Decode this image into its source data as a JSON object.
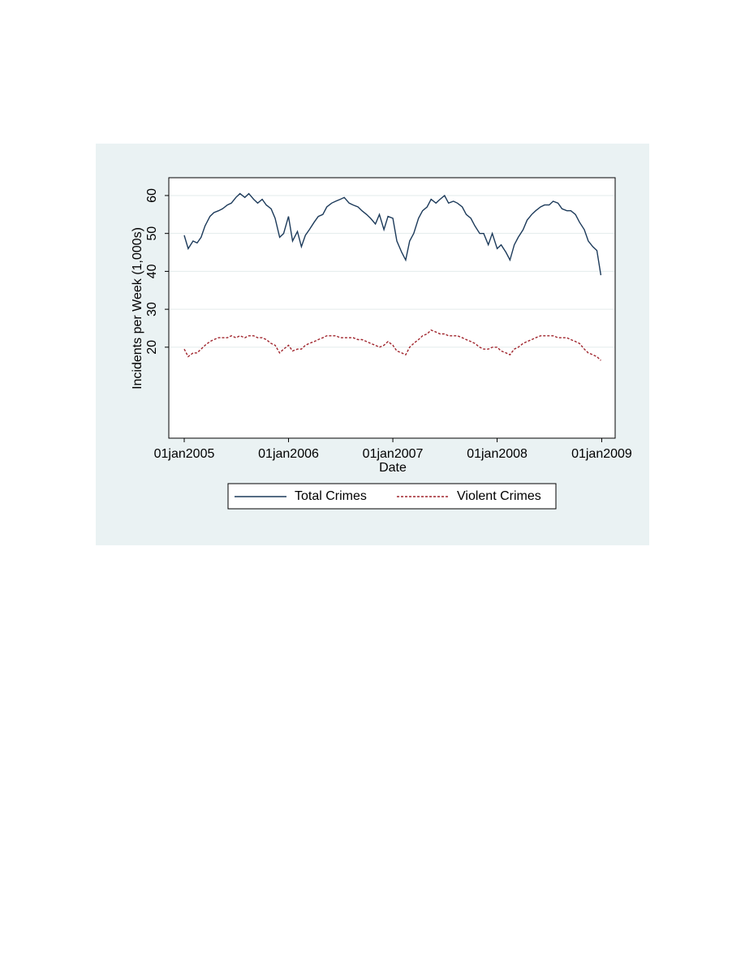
{
  "chart_data": {
    "type": "line",
    "ylabel": "Incidents per Week (1,000s)",
    "xlabel": "Date",
    "xlim": [
      "2004-11-08",
      "2009-02-17"
    ],
    "xticks": [
      {
        "value": "2005-01-01",
        "label": "01jan2005"
      },
      {
        "value": "2006-01-01",
        "label": "01jan2006"
      },
      {
        "value": "2007-01-01",
        "label": "01jan2007"
      },
      {
        "value": "2008-01-01",
        "label": "01jan2008"
      },
      {
        "value": "2009-01-01",
        "label": "01jan2009"
      }
    ],
    "ylim": [
      -4,
      64.7
    ],
    "yticks": [
      20,
      30,
      40,
      50,
      60
    ],
    "grid": true,
    "legend": "bottom",
    "x": [
      "2005-01-01",
      "2005-01-15",
      "2005-02-01",
      "2005-02-15",
      "2005-03-01",
      "2005-03-15",
      "2005-04-01",
      "2005-04-15",
      "2005-05-01",
      "2005-05-15",
      "2005-06-01",
      "2005-06-15",
      "2005-07-01",
      "2005-07-15",
      "2005-08-01",
      "2005-08-15",
      "2005-09-01",
      "2005-09-15",
      "2005-10-01",
      "2005-10-15",
      "2005-11-01",
      "2005-11-15",
      "2005-12-01",
      "2005-12-15",
      "2006-01-01",
      "2006-01-15",
      "2006-02-01",
      "2006-02-15",
      "2006-03-01",
      "2006-03-15",
      "2006-04-01",
      "2006-04-15",
      "2006-05-01",
      "2006-05-15",
      "2006-06-01",
      "2006-06-15",
      "2006-07-01",
      "2006-07-15",
      "2006-08-01",
      "2006-08-15",
      "2006-09-01",
      "2006-09-15",
      "2006-10-01",
      "2006-10-15",
      "2006-11-01",
      "2006-11-15",
      "2006-12-01",
      "2006-12-15",
      "2007-01-01",
      "2007-01-15",
      "2007-02-01",
      "2007-02-15",
      "2007-03-01",
      "2007-03-15",
      "2007-04-01",
      "2007-04-15",
      "2007-05-01",
      "2007-05-15",
      "2007-06-01",
      "2007-06-15",
      "2007-07-01",
      "2007-07-15",
      "2007-08-01",
      "2007-08-15",
      "2007-09-01",
      "2007-09-15",
      "2007-10-01",
      "2007-10-15",
      "2007-11-01",
      "2007-11-15",
      "2007-12-01",
      "2007-12-15",
      "2008-01-01",
      "2008-01-15",
      "2008-02-01",
      "2008-02-15",
      "2008-03-01",
      "2008-03-15",
      "2008-04-01",
      "2008-04-15",
      "2008-05-01",
      "2008-05-15",
      "2008-06-01",
      "2008-06-15",
      "2008-07-01",
      "2008-07-15",
      "2008-08-01",
      "2008-08-15",
      "2008-09-01",
      "2008-09-15",
      "2008-10-01",
      "2008-10-15",
      "2008-11-01",
      "2008-11-15",
      "2008-12-01",
      "2008-12-15",
      "2008-12-29"
    ],
    "series": [
      {
        "name": "Total Crimes",
        "color": "#1c3a5a",
        "dash": false,
        "values": [
          49.5,
          46,
          48,
          47.5,
          49,
          52,
          54.5,
          55.5,
          56,
          56.5,
          57.5,
          58,
          59.5,
          60.5,
          59.5,
          60.5,
          59,
          58,
          59,
          57.5,
          56.5,
          54,
          49,
          50,
          54.5,
          48,
          50.5,
          46.5,
          49.5,
          51,
          53,
          54.5,
          55,
          57,
          58,
          58.5,
          59,
          59.5,
          58,
          57.5,
          57,
          56,
          55,
          54,
          52.5,
          55,
          51,
          54.5,
          54,
          48,
          45,
          43,
          48,
          50,
          54,
          56,
          57,
          59,
          58,
          59,
          60,
          58,
          58.5,
          58,
          57,
          55,
          54,
          52,
          50,
          50,
          47,
          50,
          46,
          47,
          45,
          43,
          47,
          49,
          51,
          53.5,
          55,
          56,
          57,
          57.5,
          57.5,
          58.5,
          58,
          56.5,
          56,
          56,
          55,
          53,
          51,
          48,
          46.5,
          45.5,
          39
        ]
      },
      {
        "name": "Violent Crimes",
        "color": "#a0242c",
        "dash": true,
        "values": [
          19.5,
          17.5,
          18.5,
          18.5,
          19.5,
          20.5,
          21.5,
          22,
          22.5,
          22.5,
          22.5,
          23,
          22.5,
          23,
          22.5,
          23,
          23,
          22.5,
          22.5,
          22,
          21,
          20.5,
          18.5,
          19.5,
          20.5,
          19,
          19.5,
          19.5,
          20.5,
          21,
          21.5,
          22,
          22.5,
          23,
          23,
          23,
          22.5,
          22.5,
          22.5,
          22.5,
          22,
          22,
          21.5,
          21,
          20.5,
          20,
          20.5,
          21.5,
          20.5,
          19,
          18.5,
          18,
          20,
          21,
          22,
          23,
          23.5,
          24.5,
          24,
          23.5,
          23.5,
          23,
          23,
          23,
          22.5,
          22,
          21.5,
          21,
          20,
          19.5,
          19.5,
          20,
          20,
          19,
          18.5,
          18,
          19.5,
          20,
          21,
          21.5,
          22,
          22.5,
          23,
          23,
          23,
          23,
          22.5,
          22.5,
          22.5,
          22,
          21.5,
          21,
          19.5,
          18.5,
          18,
          17.5,
          16.5
        ]
      }
    ]
  }
}
